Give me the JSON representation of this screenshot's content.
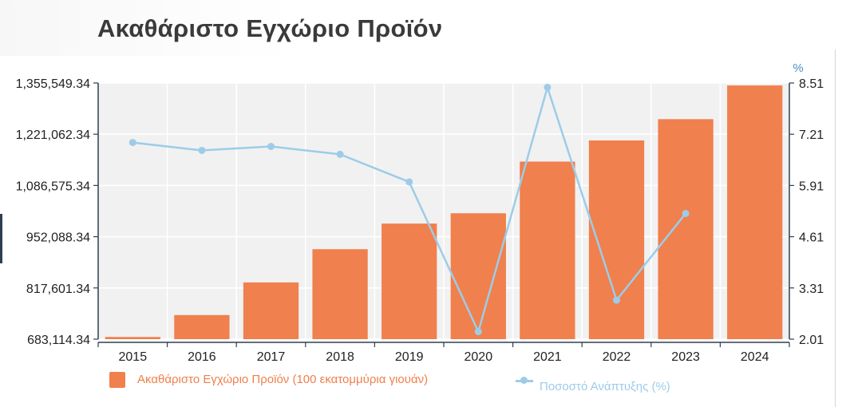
{
  "chart_data": {
    "type": "bar+line",
    "title": "Ακαθάριστο Εγχώριο Προϊόν",
    "categories": [
      "2015",
      "2016",
      "2017",
      "2018",
      "2019",
      "2020",
      "2021",
      "2022",
      "2023",
      "2024"
    ],
    "y_left": {
      "ticks": [
        "1,355,549.34",
        "1,221,062.34",
        "1,086,575.34",
        "952,088.34",
        "817,601.34",
        "683,114.34"
      ],
      "tick_values": [
        1355549.34,
        1221062.34,
        1086575.34,
        952088.34,
        817601.34,
        683114.34
      ],
      "range": [
        683114.34,
        1355549.34
      ]
    },
    "y_right": {
      "unit_label": "%",
      "ticks": [
        "8.51",
        "7.21",
        "5.91",
        "4.61",
        "3.31",
        "2.01"
      ],
      "tick_values": [
        8.51,
        7.21,
        5.91,
        4.61,
        3.31,
        2.01
      ],
      "range": [
        2.01,
        8.51
      ]
    },
    "series": [
      {
        "name": "Ακαθάριστο Εγχώριο Προϊόν (100 εκατομμύρια γιουάν)",
        "type": "bar",
        "axis": "left",
        "color": "#f0804d",
        "values": [
          688858,
          746395,
          832036,
          919281,
          986515,
          1013567,
          1149237,
          1204724,
          1260582,
          1349084
        ]
      },
      {
        "name": "Ποσοστό Ανάπτυξης (%)",
        "type": "line",
        "axis": "right",
        "color": "#9dcce8",
        "values": [
          7.0,
          6.8,
          6.9,
          6.7,
          6.0,
          2.2,
          8.4,
          3.0,
          5.2,
          null
        ]
      }
    ],
    "grid": true,
    "legend": "bottom"
  }
}
